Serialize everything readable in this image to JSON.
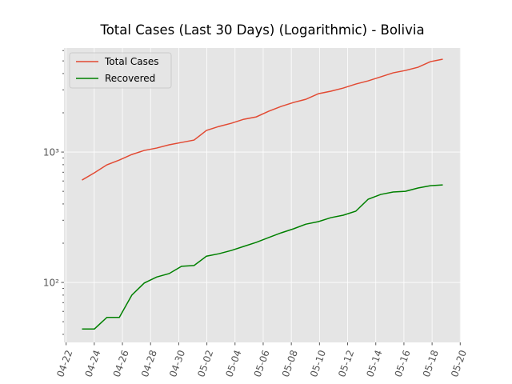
{
  "chart_data": {
    "type": "line",
    "title": "Total Cases (Last 30 Days) (Logarithmic) - Bolivia",
    "x": [
      1.13,
      2.01,
      2.9,
      3.78,
      4.67,
      5.55,
      6.43,
      7.32,
      8.2,
      9.09,
      9.97,
      10.85,
      11.74,
      12.62,
      13.51,
      14.39,
      15.27,
      16.16,
      17.04,
      17.93,
      18.81,
      19.69,
      20.58,
      21.46,
      22.35,
      23.23,
      24.11,
      25.0,
      25.88,
      26.76
    ],
    "series": [
      {
        "name": "Total Cases",
        "color": "#E24A33",
        "values": [
          610,
          693,
          798,
          868,
          958,
          1029,
          1073,
          1136,
          1185,
          1236,
          1465,
          1571,
          1663,
          1784,
          1861,
          2054,
          2237,
          2402,
          2541,
          2804,
          2929,
          3095,
          3324,
          3515,
          3774,
          4050,
          4225,
          4472,
          4935,
          5153
        ]
      },
      {
        "name": "Recovered",
        "color": "#008000",
        "values": [
          44,
          44,
          54,
          54,
          80,
          99,
          110,
          117,
          133,
          135,
          159,
          166,
          176,
          189,
          203,
          221,
          240,
          258,
          280,
          293,
          314,
          328,
          352,
          435,
          473,
          494,
          500,
          530,
          552,
          560
        ]
      }
    ],
    "xlim": [
      -0.15,
      28.04
    ],
    "xticks": [
      {
        "value": 0,
        "label": "04-22"
      },
      {
        "value": 2,
        "label": "04-24"
      },
      {
        "value": 4,
        "label": "04-26"
      },
      {
        "value": 6,
        "label": "04-28"
      },
      {
        "value": 8,
        "label": "04-30"
      },
      {
        "value": 10,
        "label": "05-02"
      },
      {
        "value": 12,
        "label": "05-04"
      },
      {
        "value": 14,
        "label": "05-06"
      },
      {
        "value": 16,
        "label": "05-08"
      },
      {
        "value": 18,
        "label": "05-10"
      },
      {
        "value": 20,
        "label": "05-12"
      },
      {
        "value": 22,
        "label": "05-14"
      },
      {
        "value": 24,
        "label": "05-16"
      },
      {
        "value": 26,
        "label": "05-18"
      },
      {
        "value": 28,
        "label": "05-20"
      }
    ],
    "ylim": [
      34.7,
      6280
    ],
    "log_scale": true,
    "yticks": [
      {
        "value": 100,
        "label": "10²"
      },
      {
        "value": 1000,
        "label": "10³"
      }
    ],
    "yminor": [
      40,
      50,
      60,
      70,
      80,
      90,
      200,
      300,
      400,
      500,
      600,
      700,
      800,
      900,
      2000,
      3000,
      4000,
      5000,
      6000
    ],
    "grid": true,
    "legend": "upper left"
  }
}
